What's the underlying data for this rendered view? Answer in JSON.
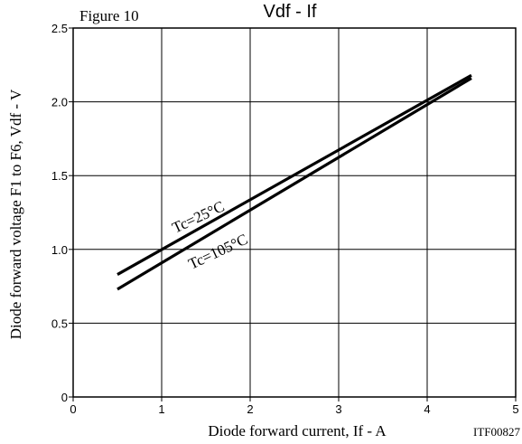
{
  "figure_label": "Figure 10",
  "chart_code": "ITF00827",
  "chart_data": {
    "type": "line",
    "title": "Vdf - If",
    "xlabel": "Diode forward current, If - A",
    "ylabel": "Diode forward voltage F1 to F6, Vdf - V",
    "xlim": [
      0,
      5
    ],
    "ylim": [
      0,
      2.5
    ],
    "x_ticks": [
      "0",
      "1",
      "2",
      "3",
      "4",
      "5"
    ],
    "y_ticks": [
      "0",
      "0.5",
      "1.0",
      "1.5",
      "2.0",
      "2.5"
    ],
    "grid": true,
    "series": [
      {
        "name": "Tc=25°C",
        "x": [
          0.5,
          4.5
        ],
        "y": [
          0.83,
          2.18
        ]
      },
      {
        "name": "Tc=105°C",
        "x": [
          0.5,
          4.5
        ],
        "y": [
          0.73,
          2.16
        ]
      }
    ],
    "series_color": "#000000"
  }
}
